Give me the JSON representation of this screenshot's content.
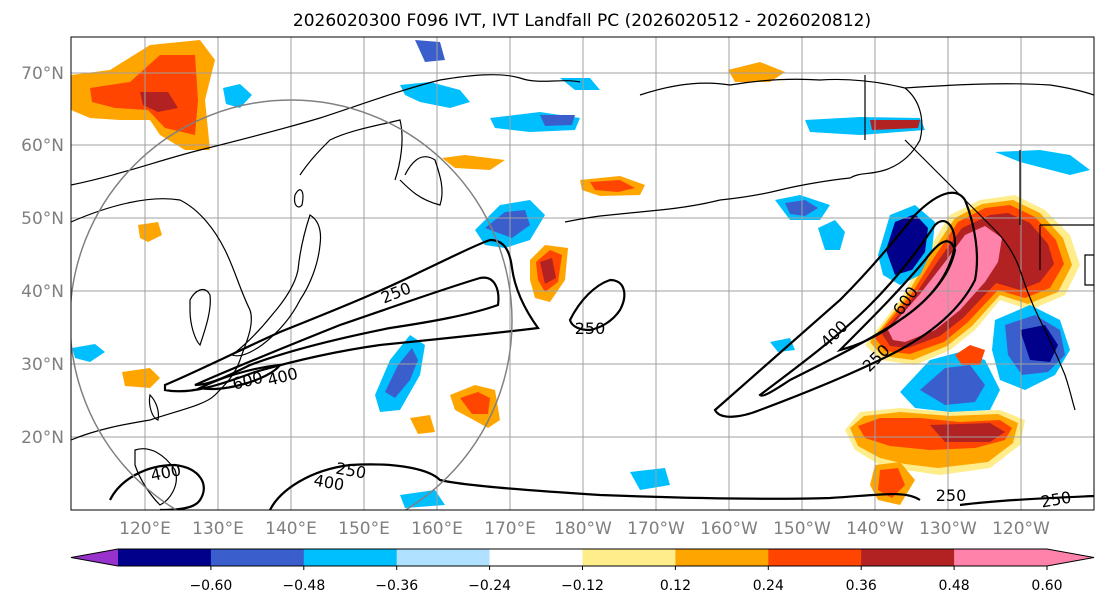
{
  "title": "2026020300 F096 IVT, IVT Landfall PC (2026020512 - 2026020812)",
  "lat_labels": [
    "70°N",
    "60°N",
    "50°N",
    "40°N",
    "30°N",
    "20°N"
  ],
  "lon_labels": [
    "120°E",
    "130°E",
    "140°E",
    "150°E",
    "160°E",
    "170°E",
    "180°W",
    "170°W",
    "160°W",
    "150°W",
    "140°W",
    "130°W",
    "120°W"
  ],
  "contour_labels": [
    "250",
    "600",
    "400",
    "250",
    "400",
    "600",
    "250",
    "400",
    "250",
    "400",
    "250",
    "250"
  ],
  "colorbar": {
    "colors": [
      "#9932cc",
      "#00008b",
      "#3a5fcd",
      "#00bfff",
      "#b0e2ff",
      "#ffffff",
      "#ffec8b",
      "#ffa500",
      "#ff4500",
      "#b22222",
      "#ff82ab",
      "#ff82ab"
    ],
    "tick_labels": [
      "−0.60",
      "−0.48",
      "−0.36",
      "−0.24",
      "−0.12",
      "0.12",
      "0.24",
      "0.36",
      "0.48",
      "0.60"
    ]
  }
}
